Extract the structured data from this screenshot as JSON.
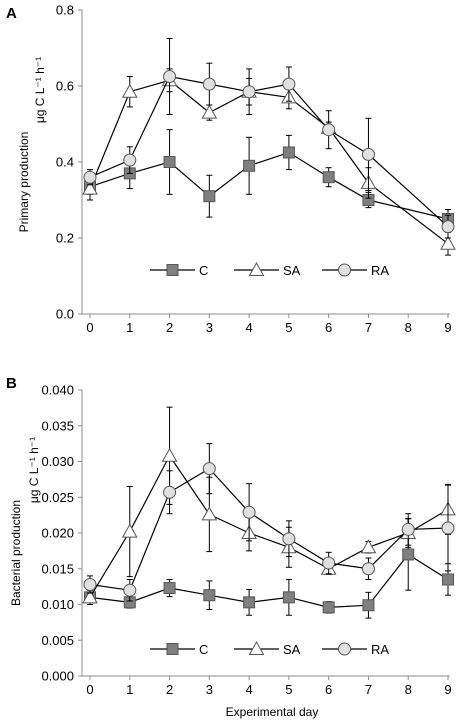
{
  "chart_data": [
    {
      "panel_label": "A",
      "type": "line",
      "ylabel_main": "Primary production",
      "ylabel_unit": "μg C L⁻¹ h⁻¹",
      "xlabel": "",
      "x": [
        0,
        1,
        2,
        3,
        4,
        5,
        6,
        7,
        8,
        9
      ],
      "xticks": [
        "0",
        "1",
        "2",
        "3",
        "4",
        "5",
        "6",
        "7",
        "8",
        "9"
      ],
      "ylim": [
        0,
        0.8
      ],
      "yticks": [
        "0.0",
        "0.2",
        "0.4",
        "0.6",
        "0.8"
      ],
      "legend_position": "bottom",
      "series": [
        {
          "name": "C",
          "marker": "square",
          "fill": "#7f7f7f",
          "points": [
            [
              0,
              0.335
            ],
            [
              1,
              0.37
            ],
            [
              2,
              0.4
            ],
            [
              3,
              0.31
            ],
            [
              4,
              0.39
            ],
            [
              5,
              0.425
            ],
            [
              6,
              0.36
            ],
            [
              7,
              0.3
            ],
            [
              9,
              0.25
            ]
          ],
          "err": [
            0.02,
            0.04,
            0.085,
            0.055,
            0.075,
            0.045,
            0.025,
            0.02,
            0.025
          ]
        },
        {
          "name": "SA",
          "marker": "triangle",
          "fill": "#ffffff",
          "points": [
            [
              0,
              0.33
            ],
            [
              1,
              0.585
            ],
            [
              2,
              0.615
            ],
            [
              3,
              0.53
            ],
            [
              4,
              0.585
            ],
            [
              5,
              0.57
            ],
            [
              6,
              0.49
            ],
            [
              7,
              0.345
            ],
            [
              9,
              0.185
            ]
          ],
          "err": [
            0.03,
            0.04,
            0.03,
            0.02,
            0.035,
            0.03,
            0.015,
            0.04,
            0.03
          ]
        },
        {
          "name": "RA",
          "marker": "circle",
          "fill": "#e0e0e0",
          "points": [
            [
              0,
              0.36
            ],
            [
              1,
              0.405
            ],
            [
              2,
              0.625
            ],
            [
              3,
              0.605
            ],
            [
              4,
              0.585
            ],
            [
              5,
              0.605
            ],
            [
              6,
              0.485
            ],
            [
              7,
              0.42
            ],
            [
              9,
              0.23
            ]
          ],
          "err": [
            0.02,
            0.035,
            0.1,
            0.055,
            0.06,
            0.045,
            0.05,
            0.095,
            0.03
          ]
        }
      ]
    },
    {
      "panel_label": "B",
      "type": "line",
      "ylabel_main": "Bacterial production",
      "ylabel_unit": "μg C L⁻¹ h⁻¹",
      "xlabel": "Experimental day",
      "x": [
        0,
        1,
        2,
        3,
        4,
        5,
        6,
        7,
        8,
        9
      ],
      "xticks": [
        "0",
        "1",
        "2",
        "3",
        "4",
        "5",
        "6",
        "7",
        "8",
        "9"
      ],
      "ylim": [
        0,
        0.04
      ],
      "yticks": [
        "0.000",
        "0.005",
        "0.010",
        "0.015",
        "0.020",
        "0.025",
        "0.030",
        "0.035",
        "0.040"
      ],
      "legend_position": "bottom",
      "series": [
        {
          "name": "C",
          "marker": "square",
          "fill": "#7f7f7f",
          "points": [
            [
              0,
              0.011
            ],
            [
              1,
              0.0103
            ],
            [
              2,
              0.0123
            ],
            [
              3,
              0.0113
            ],
            [
              4,
              0.0103
            ],
            [
              5,
              0.011
            ],
            [
              6,
              0.0096
            ],
            [
              7,
              0.0099
            ],
            [
              8,
              0.017
            ],
            [
              9,
              0.0135
            ]
          ],
          "err": [
            0.001,
            0.0008,
            0.0012,
            0.002,
            0.0018,
            0.0025,
            0.0008,
            0.0018,
            0.005,
            0.0022
          ]
        },
        {
          "name": "SA",
          "marker": "triangle",
          "fill": "#ffffff",
          "points": [
            [
              0,
              0.011
            ],
            [
              1,
              0.0202
            ],
            [
              2,
              0.0308
            ],
            [
              3,
              0.0226
            ],
            [
              4,
              0.02
            ],
            [
              5,
              0.018
            ],
            [
              6,
              0.015
            ],
            [
              7,
              0.018
            ],
            [
              8,
              0.02
            ],
            [
              9,
              0.0233
            ]
          ],
          "err": [
            0.001,
            0.0063,
            0.0068,
            0.0052,
            0.0025,
            0.0028,
            0.0008,
            0.0008,
            0.002,
            0.0035
          ]
        },
        {
          "name": "RA",
          "marker": "circle",
          "fill": "#e0e0e0",
          "points": [
            [
              0,
              0.0128
            ],
            [
              1,
              0.012
            ],
            [
              2,
              0.0257
            ],
            [
              3,
              0.029
            ],
            [
              4,
              0.0229
            ],
            [
              5,
              0.0192
            ],
            [
              6,
              0.0158
            ],
            [
              7,
              0.015
            ],
            [
              8,
              0.0205
            ],
            [
              9,
              0.0207
            ]
          ],
          "err": [
            0.0012,
            0.0015,
            0.003,
            0.0035,
            0.004,
            0.0025,
            0.0015,
            0.0015,
            0.0022,
            0.006
          ]
        }
      ]
    }
  ]
}
